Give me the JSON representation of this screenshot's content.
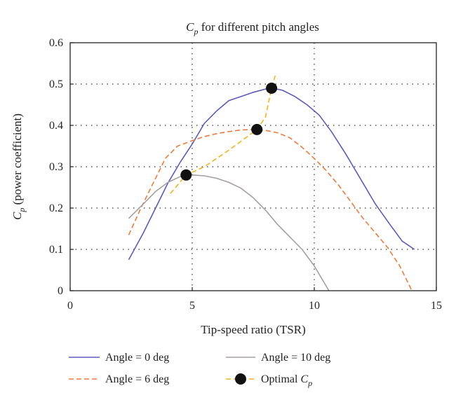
{
  "chart_data": {
    "type": "line",
    "title": "C_p for different pitch angles",
    "title_parts": {
      "sym": "C",
      "sub": "p",
      "rest": " for different pitch angles"
    },
    "xlabel": "Tip-speed ratio (TSR)",
    "ylabel": "C_p (power coefficient)",
    "ylabel_parts": {
      "sym": "C",
      "sub": "p",
      "rest": " (power coefficient)"
    },
    "xlim": [
      0,
      15
    ],
    "ylim": [
      0,
      0.6
    ],
    "x_ticks": [
      "0",
      "5",
      "10",
      "15"
    ],
    "y_ticks": [
      "0",
      "0.1",
      "0.2",
      "0.3",
      "0.4",
      "0.5",
      "0.6"
    ],
    "grid": true,
    "legend_position": "below",
    "series": [
      {
        "name": "Angle = 0 deg",
        "color": "#5b5bbf",
        "style": "solid",
        "points": [
          [
            2.4,
            0.075
          ],
          [
            3,
            0.14
          ],
          [
            3.5,
            0.2
          ],
          [
            4,
            0.26
          ],
          [
            4.5,
            0.31
          ],
          [
            5,
            0.355
          ],
          [
            5.5,
            0.405
          ],
          [
            6,
            0.435
          ],
          [
            6.5,
            0.46
          ],
          [
            7,
            0.47
          ],
          [
            7.5,
            0.48
          ],
          [
            8,
            0.488
          ],
          [
            8.3,
            0.49
          ],
          [
            8.7,
            0.485
          ],
          [
            9.2,
            0.47
          ],
          [
            9.7,
            0.45
          ],
          [
            10.2,
            0.425
          ],
          [
            10.7,
            0.385
          ],
          [
            11.3,
            0.33
          ],
          [
            11.9,
            0.27
          ],
          [
            12.5,
            0.21
          ],
          [
            13.1,
            0.16
          ],
          [
            13.6,
            0.12
          ],
          [
            14.1,
            0.1
          ]
        ]
      },
      {
        "name": "Angle = 6 deg",
        "color": "#f07a3a",
        "style": "dashed",
        "points": [
          [
            2.4,
            0.135
          ],
          [
            2.9,
            0.2
          ],
          [
            3.4,
            0.26
          ],
          [
            3.9,
            0.32
          ],
          [
            4.4,
            0.35
          ],
          [
            5,
            0.363
          ],
          [
            5.5,
            0.373
          ],
          [
            6,
            0.38
          ],
          [
            6.5,
            0.385
          ],
          [
            7,
            0.389
          ],
          [
            7.5,
            0.39
          ],
          [
            8,
            0.388
          ],
          [
            8.5,
            0.382
          ],
          [
            9,
            0.37
          ],
          [
            9.5,
            0.347
          ],
          [
            10,
            0.32
          ],
          [
            10.5,
            0.29
          ],
          [
            11,
            0.255
          ],
          [
            11.5,
            0.215
          ],
          [
            12,
            0.175
          ],
          [
            12.5,
            0.14
          ],
          [
            13,
            0.105
          ],
          [
            13.5,
            0.06
          ],
          [
            14,
            0
          ]
        ]
      },
      {
        "name": "Angle = 10 deg",
        "color": "#a59fa0",
        "style": "solid",
        "points": [
          [
            2.4,
            0.175
          ],
          [
            3,
            0.21
          ],
          [
            3.5,
            0.24
          ],
          [
            4,
            0.262
          ],
          [
            4.5,
            0.276
          ],
          [
            5,
            0.28
          ],
          [
            5.5,
            0.278
          ],
          [
            6,
            0.272
          ],
          [
            6.5,
            0.262
          ],
          [
            7,
            0.248
          ],
          [
            7.5,
            0.225
          ],
          [
            8,
            0.195
          ],
          [
            8.5,
            0.16
          ],
          [
            9,
            0.13
          ],
          [
            9.5,
            0.1
          ],
          [
            10,
            0.06
          ],
          [
            10.3,
            0.03
          ],
          [
            10.6,
            0
          ]
        ]
      },
      {
        "name": "Optimal C_p",
        "legend_parts": {
          "prefix": "Optimal ",
          "sym": "C",
          "sub": "p"
        },
        "color": "#f2b418",
        "style": "dashed",
        "marker": "circle",
        "marker_color": "#111111",
        "points": [
          [
            4.1,
            0.235
          ],
          [
            4.75,
            0.28
          ],
          [
            5.5,
            0.3
          ],
          [
            6.5,
            0.34
          ],
          [
            7.65,
            0.39
          ],
          [
            8,
            0.42
          ],
          [
            8.25,
            0.49
          ],
          [
            8.4,
            0.52
          ]
        ],
        "marker_points": [
          [
            4.75,
            0.28
          ],
          [
            7.65,
            0.39
          ],
          [
            8.25,
            0.49
          ]
        ]
      }
    ]
  }
}
